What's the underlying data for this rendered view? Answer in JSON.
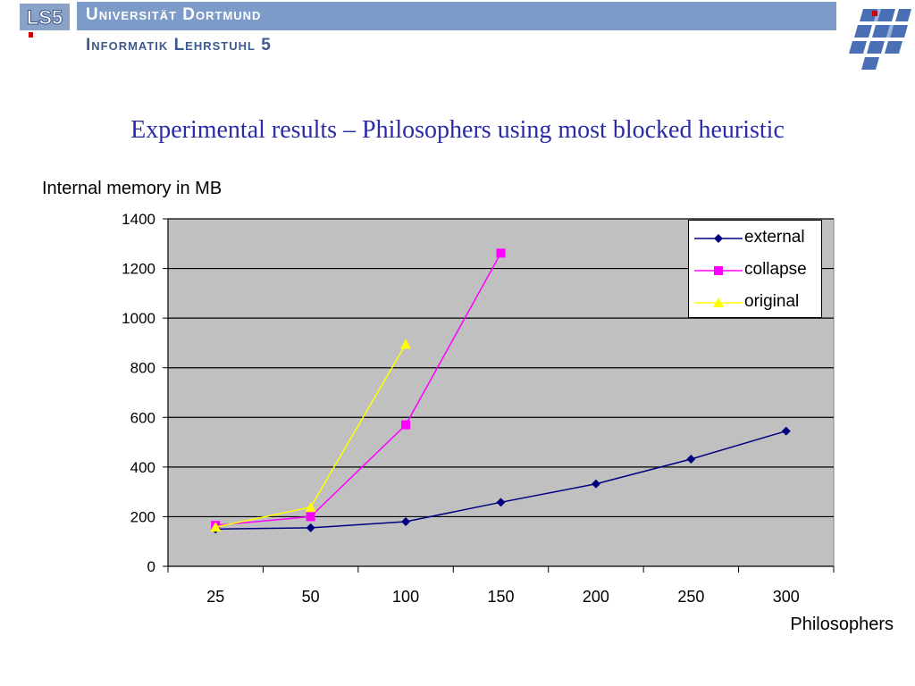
{
  "header": {
    "university": "Universität Dortmund",
    "chair": "Informatik Lehrstuhl 5",
    "logo_text": "LS5",
    "bar_color": "#7d9bc9"
  },
  "slide": {
    "title": "Experimental results – Philosophers using most blocked heuristic"
  },
  "chart_data": {
    "type": "line",
    "categories": [
      "25",
      "50",
      "100",
      "150",
      "200",
      "250",
      "300"
    ],
    "ylabel": "Internal memory in MB",
    "xlabel": "Philosophers",
    "ylim": [
      0,
      1400
    ],
    "yticks": [
      "0",
      "200",
      "400",
      "600",
      "800",
      "1000",
      "1200",
      "1400"
    ],
    "grid": true,
    "plot_background": "#c0c0c0",
    "legend_position": "top-right",
    "series": [
      {
        "name": "external",
        "color": "#000080",
        "marker": "diamond",
        "values": [
          150,
          155,
          180,
          258,
          332,
          432,
          545
        ]
      },
      {
        "name": "collapse",
        "color": "#ff00ff",
        "marker": "square",
        "values": [
          165,
          200,
          570,
          1262,
          null,
          null,
          null
        ]
      },
      {
        "name": "original",
        "color": "#ffff00",
        "marker": "triangle",
        "values": [
          158,
          238,
          895,
          null,
          null,
          null,
          null
        ]
      }
    ]
  }
}
